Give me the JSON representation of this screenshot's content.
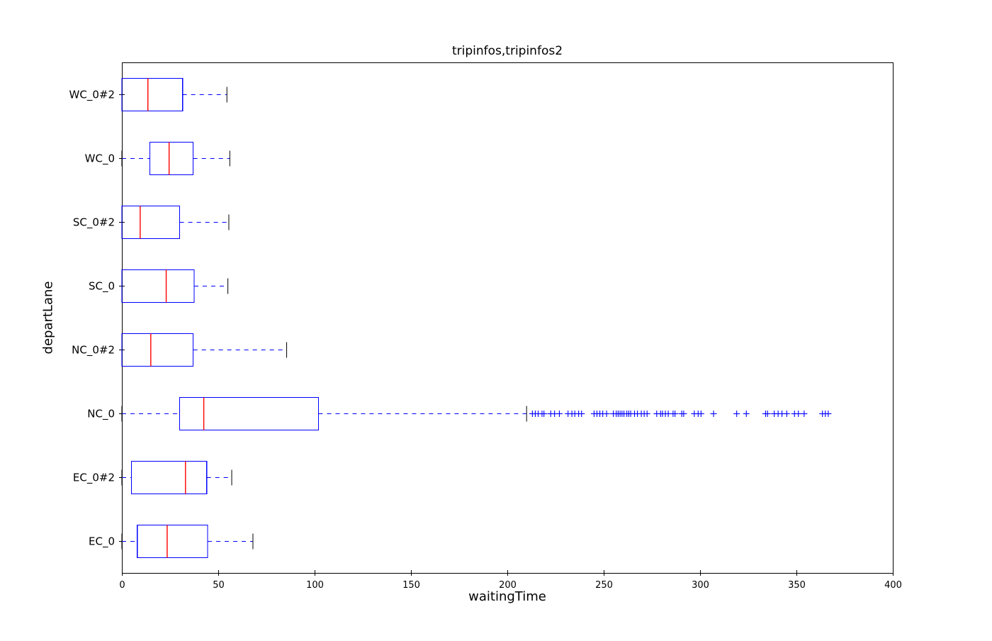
{
  "window": {
    "background": "#ffffff"
  },
  "chart_data": {
    "type": "boxplot",
    "orientation": "horizontal",
    "title": "tripinfos,tripinfos2",
    "xlabel": "waitingTime",
    "ylabel": "departLane",
    "xlim": [
      0,
      400
    ],
    "x_ticks": [
      "0",
      "50",
      "100",
      "150",
      "200",
      "250",
      "300",
      "350",
      "400"
    ],
    "grid": false,
    "legend": "none",
    "colors": {
      "box": "#0000ff",
      "median": "#ff0000",
      "whisker": "#0000ff",
      "cap": "#000000",
      "flier": "#0000ff",
      "axis": "#000000",
      "text": "#000000",
      "background": "#ffffff"
    },
    "categories_top_to_bottom": [
      "WC_0#2",
      "WC_0",
      "SC_0#2",
      "SC_0",
      "NC_0#2",
      "NC_0",
      "EC_0#2",
      "EC_0"
    ],
    "series": [
      {
        "label": "WC_0#2",
        "whislo": 0,
        "q1": 0,
        "med": 13.5,
        "q3": 31.5,
        "whishi": 54.5,
        "fliers": []
      },
      {
        "label": "WC_0",
        "whislo": 0,
        "q1": 14.5,
        "med": 24.5,
        "q3": 37,
        "whishi": 56,
        "fliers": []
      },
      {
        "label": "SC_0#2",
        "whislo": 0,
        "q1": 0,
        "med": 9.5,
        "q3": 30,
        "whishi": 55.5,
        "fliers": []
      },
      {
        "label": "SC_0",
        "whislo": 0,
        "q1": 0,
        "med": 23,
        "q3": 37.5,
        "whishi": 55,
        "fliers": []
      },
      {
        "label": "NC_0#2",
        "whislo": 0,
        "q1": 0,
        "med": 15,
        "q3": 37,
        "whishi": 85.5,
        "fliers": []
      },
      {
        "label": "NC_0",
        "whislo": 0,
        "q1": 30,
        "med": 42.5,
        "q3": 102,
        "whishi": 210,
        "fliers": [
          213,
          214.5,
          216,
          218,
          219,
          222.5,
          224.5,
          227,
          231.5,
          233.5,
          235,
          237,
          238.5,
          245,
          246.5,
          248,
          249.5,
          251.5,
          255,
          256.5,
          257.5,
          258.5,
          259.5,
          260.5,
          262,
          263,
          264,
          266,
          267.5,
          269.5,
          271,
          272.5,
          277.5,
          279.5,
          280.5,
          282,
          283.5,
          286,
          287,
          290.5,
          291.5,
          297,
          299,
          300.5,
          307,
          319,
          324,
          334,
          335,
          338.5,
          340.5,
          342.5,
          345,
          349,
          351,
          354,
          363.5,
          365,
          366.5
        ]
      },
      {
        "label": "EC_0#2",
        "whislo": 0,
        "q1": 5,
        "med": 33,
        "q3": 44,
        "whishi": 57,
        "fliers": []
      },
      {
        "label": "EC_0",
        "whislo": 0,
        "q1": 8,
        "med": 23.5,
        "q3": 44.5,
        "whishi": 68,
        "fliers": []
      }
    ]
  }
}
